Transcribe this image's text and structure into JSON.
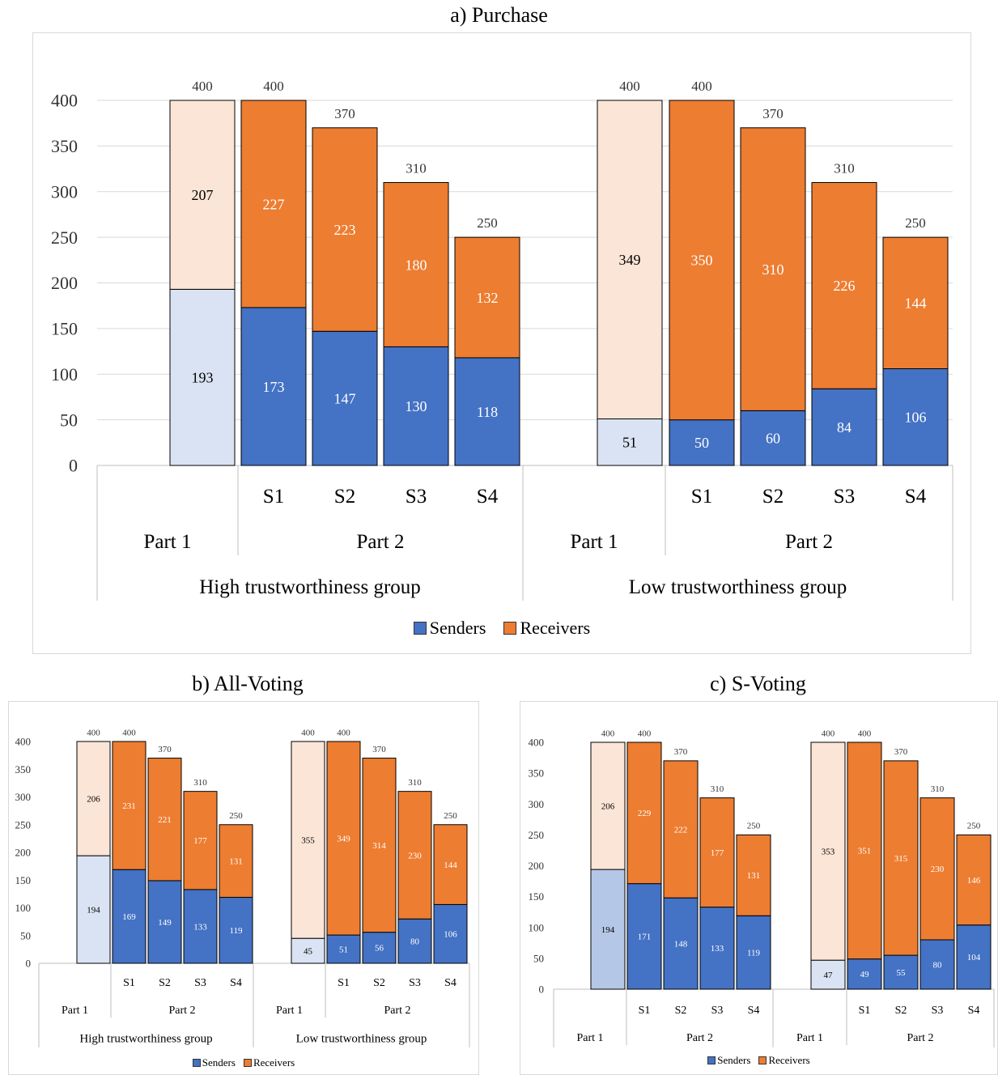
{
  "colors": {
    "senders": "#4472c4",
    "receivers": "#ed7d31",
    "senders_part1": "#dae3f3",
    "receivers_part1": "#fbe5d6",
    "senders_part1_c": "#b4c7e7"
  },
  "chart_data": [
    {
      "type": "bar",
      "stacked": true,
      "title": "a)   Purchase",
      "ylim": [
        0,
        400
      ],
      "yticks": [
        0,
        50,
        100,
        150,
        200,
        250,
        300,
        350,
        400
      ],
      "grid": true,
      "legend_position": "bottom",
      "legend": [
        "Senders",
        "Receivers"
      ],
      "groups": [
        {
          "name": "High trustworthiness group",
          "parts": [
            {
              "name": "Part 1",
              "bars": [
                {
                  "label": "",
                  "senders": 193,
                  "receivers": 207,
                  "total": 400
                }
              ]
            },
            {
              "name": "Part 2",
              "bars": [
                {
                  "label": "S1",
                  "senders": 173,
                  "receivers": 227,
                  "total": 400
                },
                {
                  "label": "S2",
                  "senders": 147,
                  "receivers": 223,
                  "total": 370
                },
                {
                  "label": "S3",
                  "senders": 130,
                  "receivers": 180,
                  "total": 310
                },
                {
                  "label": "S4",
                  "senders": 118,
                  "receivers": 132,
                  "total": 250
                }
              ]
            }
          ]
        },
        {
          "name": "Low trustworthiness group",
          "parts": [
            {
              "name": "Part 1",
              "bars": [
                {
                  "label": "",
                  "senders": 51,
                  "receivers": 349,
                  "total": 400
                }
              ]
            },
            {
              "name": "Part 2",
              "bars": [
                {
                  "label": "S1",
                  "senders": 50,
                  "receivers": 350,
                  "total": 400
                },
                {
                  "label": "S2",
                  "senders": 60,
                  "receivers": 310,
                  "total": 370
                },
                {
                  "label": "S3",
                  "senders": 84,
                  "receivers": 226,
                  "total": 310
                },
                {
                  "label": "S4",
                  "senders": 106,
                  "receivers": 144,
                  "total": 250
                }
              ]
            }
          ]
        }
      ]
    },
    {
      "type": "bar",
      "stacked": true,
      "title": "b)   All-Voting",
      "ylim": [
        0,
        400
      ],
      "yticks": [
        0,
        50,
        100,
        150,
        200,
        250,
        300,
        350,
        400
      ],
      "grid": false,
      "legend_position": "bottom",
      "legend": [
        "Senders",
        "Receivers"
      ],
      "groups": [
        {
          "name": "High trustworthiness group",
          "parts": [
            {
              "name": "Part 1",
              "bars": [
                {
                  "label": "",
                  "senders": 194,
                  "receivers": 206,
                  "total": 400
                }
              ]
            },
            {
              "name": "Part 2",
              "bars": [
                {
                  "label": "S1",
                  "senders": 169,
                  "receivers": 231,
                  "total": 400
                },
                {
                  "label": "S2",
                  "senders": 149,
                  "receivers": 221,
                  "total": 370
                },
                {
                  "label": "S3",
                  "senders": 133,
                  "receivers": 177,
                  "total": 310
                },
                {
                  "label": "S4",
                  "senders": 119,
                  "receivers": 131,
                  "total": 250
                }
              ]
            }
          ]
        },
        {
          "name": "Low trustworthiness group",
          "parts": [
            {
              "name": "Part 1",
              "bars": [
                {
                  "label": "",
                  "senders": 45,
                  "receivers": 355,
                  "total": 400
                }
              ]
            },
            {
              "name": "Part 2",
              "bars": [
                {
                  "label": "S1",
                  "senders": 51,
                  "receivers": 349,
                  "total": 400
                },
                {
                  "label": "S2",
                  "senders": 56,
                  "receivers": 314,
                  "total": 370
                },
                {
                  "label": "S3",
                  "senders": 80,
                  "receivers": 230,
                  "total": 310
                },
                {
                  "label": "S4",
                  "senders": 106,
                  "receivers": 144,
                  "total": 250
                }
              ]
            }
          ]
        }
      ]
    },
    {
      "type": "bar",
      "stacked": true,
      "title": "c)   S-Voting",
      "ylim": [
        0,
        400
      ],
      "yticks": [
        0,
        50,
        100,
        150,
        200,
        250,
        300,
        350,
        400
      ],
      "grid": false,
      "legend_position": "bottom",
      "legend": [
        "Senders",
        "Receivers"
      ],
      "groups": [
        {
          "name": "",
          "parts": [
            {
              "name": "Part 1",
              "bars": [
                {
                  "label": "",
                  "senders": 194,
                  "receivers": 206,
                  "total": 400
                }
              ]
            },
            {
              "name": "Part 2",
              "bars": [
                {
                  "label": "S1",
                  "senders": 171,
                  "receivers": 229,
                  "total": 400
                },
                {
                  "label": "S2",
                  "senders": 148,
                  "receivers": 222,
                  "total": 370
                },
                {
                  "label": "S3",
                  "senders": 133,
                  "receivers": 177,
                  "total": 310
                },
                {
                  "label": "S4",
                  "senders": 119,
                  "receivers": 131,
                  "total": 250
                }
              ]
            }
          ]
        },
        {
          "name": "",
          "parts": [
            {
              "name": "Part 1",
              "bars": [
                {
                  "label": "",
                  "senders": 47,
                  "receivers": 353,
                  "total": 400
                }
              ]
            },
            {
              "name": "Part 2",
              "bars": [
                {
                  "label": "S1",
                  "senders": 49,
                  "receivers": 351,
                  "total": 400
                },
                {
                  "label": "S2",
                  "senders": 55,
                  "receivers": 315,
                  "total": 370
                },
                {
                  "label": "S3",
                  "senders": 80,
                  "receivers": 230,
                  "total": 310
                },
                {
                  "label": "S4",
                  "senders": 104,
                  "receivers": 146,
                  "total": 250
                }
              ]
            }
          ]
        }
      ]
    }
  ]
}
